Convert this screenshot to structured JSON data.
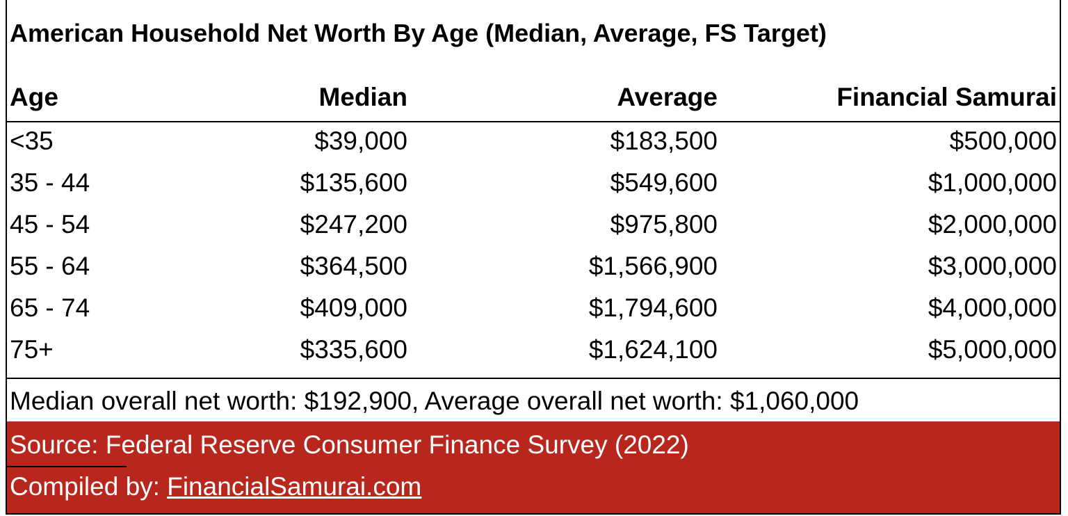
{
  "table": {
    "title": "American Household Net Worth By Age (Median, Average, FS Target)",
    "columns": [
      "Age",
      "Median",
      "Average",
      "Financial Samurai"
    ],
    "rows": [
      [
        "<35",
        "$39,000",
        "$183,500",
        "$500,000"
      ],
      [
        "35 - 44",
        "$135,600",
        "$549,600",
        "$1,000,000"
      ],
      [
        "45 - 54",
        "$247,200",
        "$975,800",
        "$2,000,000"
      ],
      [
        "55 - 64",
        "$364,500",
        "$1,566,900",
        "$3,000,000"
      ],
      [
        "65 - 74",
        "$409,000",
        "$1,794,600",
        "$4,000,000"
      ],
      [
        "75+",
        "$335,600",
        "$1,624,100",
        "$5,000,000"
      ]
    ],
    "summary": "Median overall net worth: $192,900, Average overall net worth: $1,060,000",
    "source": "Source: Federal Reserve Consumer Finance Survey (2022)",
    "compiled_by": {
      "label": "Compiled by:",
      "link": "FinancialSamurai.com"
    }
  }
}
